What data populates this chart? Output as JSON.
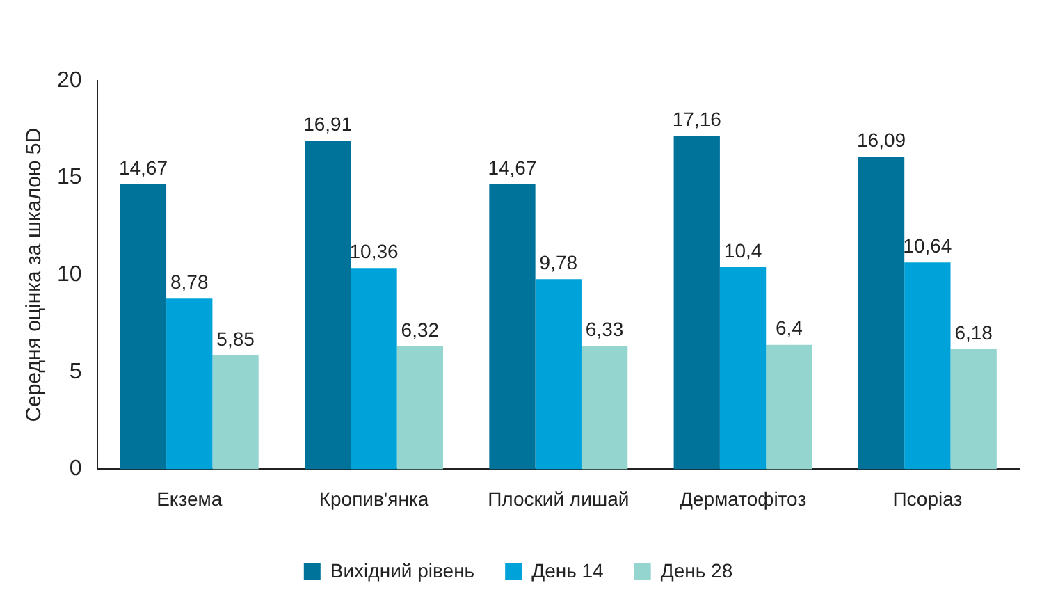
{
  "chart_data": {
    "type": "bar",
    "ylabel": "Середня оцінка за шкалою 5D",
    "categories": [
      "Екзема",
      "Кропив'янка",
      "Плоский лишай",
      "Дерматофітоз",
      "Псоріаз"
    ],
    "series": [
      {
        "name": "Вихідний рівень",
        "color": "#00739b",
        "values": [
          14.67,
          16.91,
          14.67,
          17.16,
          16.09
        ],
        "value_labels": [
          "14,67",
          "16,91",
          "14,67",
          "17,16",
          "16,09"
        ]
      },
      {
        "name": "День 14",
        "color": "#00a3d9",
        "values": [
          8.78,
          10.36,
          9.78,
          10.4,
          10.64
        ],
        "value_labels": [
          "8,78",
          "10,36",
          "9,78",
          "10,4",
          "10,64"
        ]
      },
      {
        "name": "День 28",
        "color": "#94d5cf",
        "values": [
          5.85,
          6.32,
          6.33,
          6.4,
          6.18
        ],
        "value_labels": [
          "5,85",
          "6,32",
          "6,33",
          "6,4",
          "6,18"
        ]
      }
    ],
    "ylim": [
      0,
      20
    ],
    "yticks": [
      0,
      5,
      10,
      15,
      20
    ],
    "grid": false,
    "legend": "bottom"
  }
}
